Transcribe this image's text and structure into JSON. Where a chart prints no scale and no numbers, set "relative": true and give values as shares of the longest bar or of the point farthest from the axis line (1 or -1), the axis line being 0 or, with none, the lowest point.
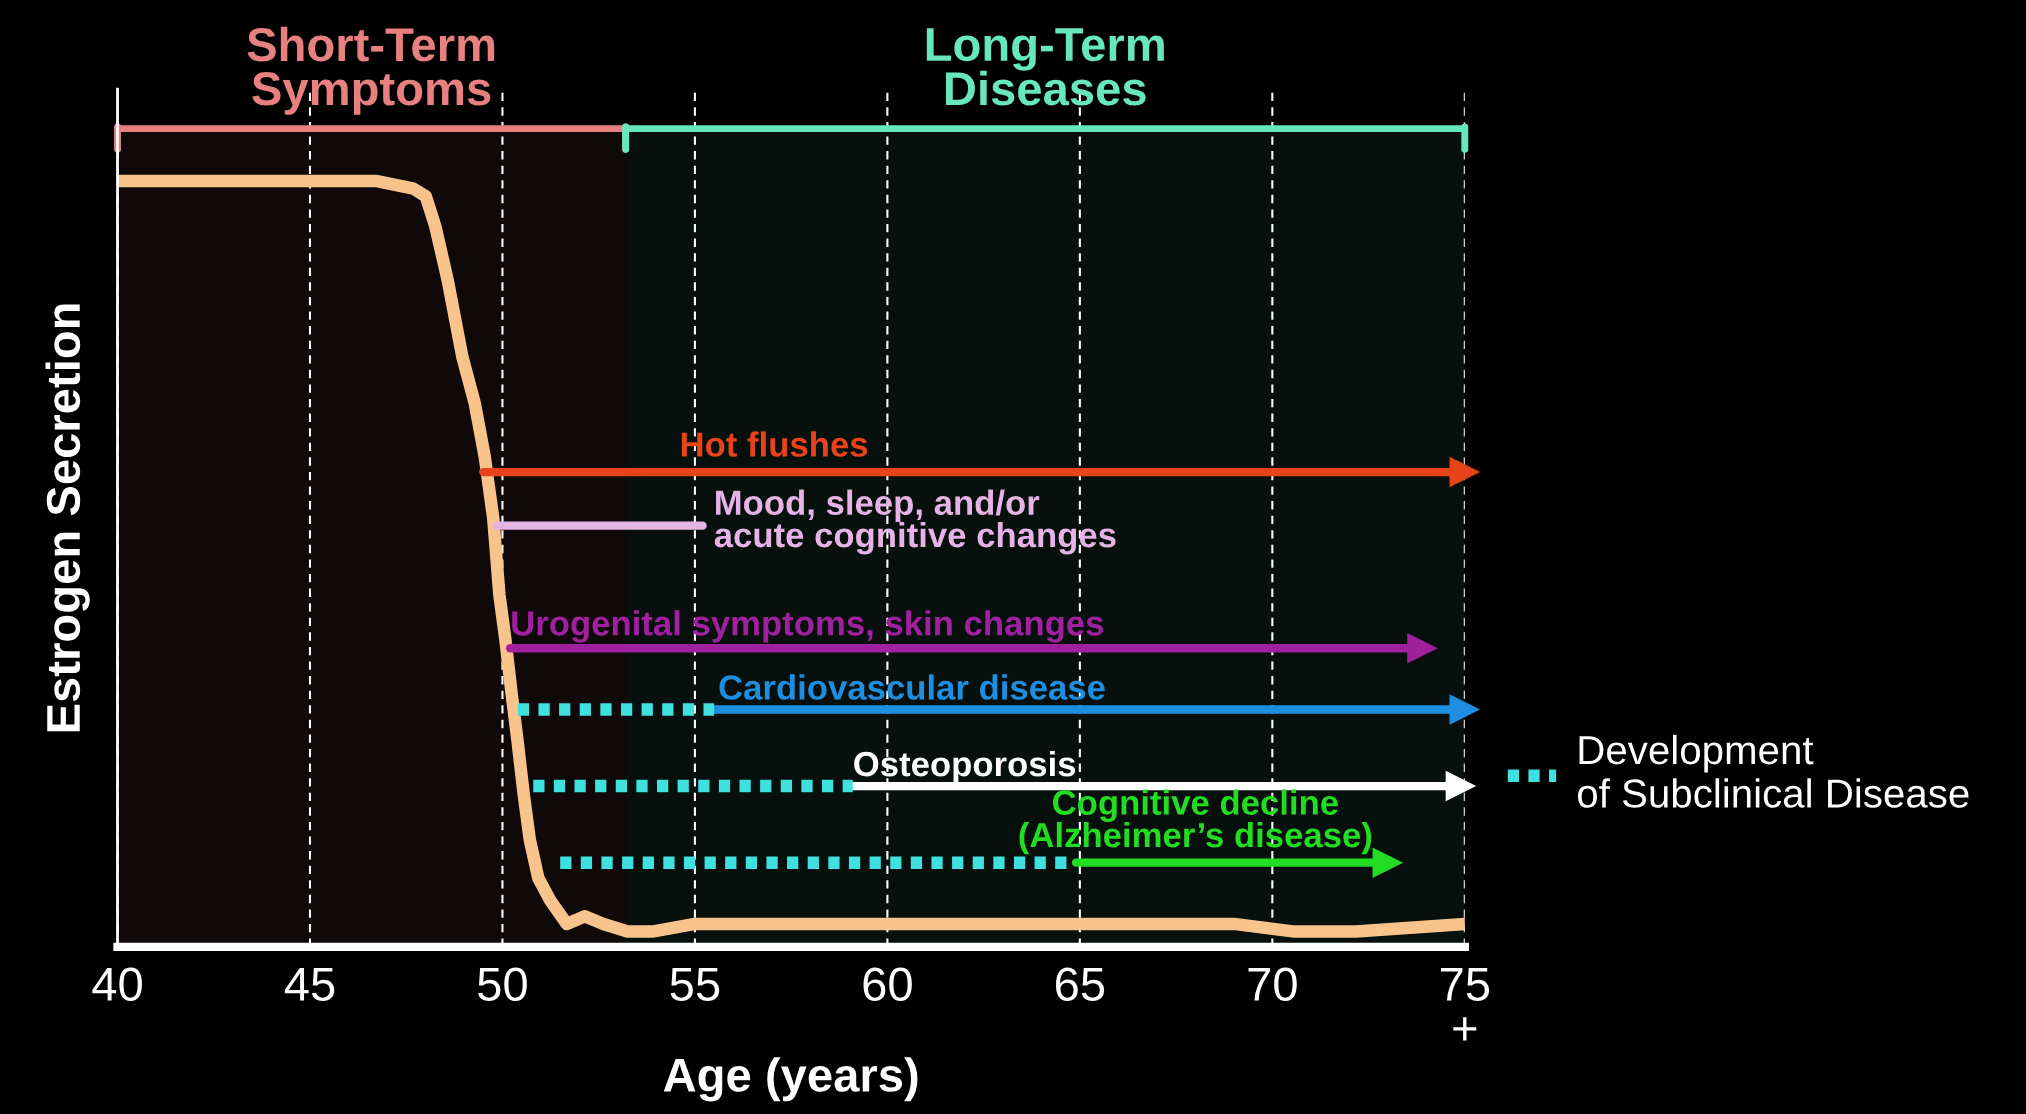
{
  "chart_data": {
    "type": "line",
    "relative": true,
    "xlabel": "Age (years)",
    "ylabel": "Estrogen Secretion",
    "xlim": [
      40,
      75
    ],
    "xticks": [
      40,
      45,
      50,
      55,
      60,
      65,
      70,
      {
        "value": 75,
        "label": "75\n+"
      }
    ],
    "grid": "x",
    "legend": "right",
    "bands": [
      {
        "axis": "x",
        "from": 40,
        "to": 53.2,
        "label": "Short-Term\nSymptoms",
        "color": "#e88080"
      },
      {
        "axis": "x",
        "from": 53.2,
        "to": 75,
        "label": "Long-Term\nDiseases",
        "color": "#66e8bb"
      }
    ],
    "series": [
      {
        "color": "#f9c48c",
        "x": [
          40,
          41.97,
          44.99,
          46.74,
          47.69,
          48.01,
          48.26,
          48.58,
          48.96,
          49.28,
          49.54,
          49.76,
          49.92,
          50.08,
          50.24,
          50.39,
          50.55,
          50.71,
          50.93,
          51.25,
          51.67,
          52.14,
          52.62,
          53.25,
          53.89,
          55.0,
          56.27,
          57.23,
          58.18,
          59.45,
          61.04,
          62.63,
          64.86,
          67.4,
          69.0,
          70.58,
          72.17,
          75
        ],
        "values": [
          1.0,
          1.0,
          1.0,
          1.0,
          0.99,
          0.98,
          0.94,
          0.87,
          0.77,
          0.71,
          0.64,
          0.56,
          0.46,
          0.4,
          0.33,
          0.27,
          0.2,
          0.14,
          0.09,
          0.06,
          0.03,
          0.04,
          0.03,
          0.02,
          0.02,
          0.03,
          0.03,
          0.03,
          0.03,
          0.03,
          0.03,
          0.03,
          0.03,
          0.03,
          0.03,
          0.02,
          0.02,
          0.03
        ]
      },
      {
        "color": "#e8431a",
        "marker": "triangle",
        "x": [
          49.5,
          75
        ],
        "values": [
          0.62,
          0.62
        ]
      },
      {
        "color": "#e6b3e6",
        "marker": "none",
        "x": [
          49.85,
          55.2
        ],
        "values": [
          0.55,
          0.55
        ]
      },
      {
        "color": "#a020a0",
        "marker": "triangle",
        "x": [
          50.2,
          73.9
        ],
        "values": [
          0.39,
          0.39
        ]
      },
      {
        "color": "#1e8fe0",
        "marker": "triangle",
        "x": [
          55.5,
          75
        ],
        "values": [
          0.31,
          0.31
        ]
      },
      {
        "color": "#ffffff",
        "marker": "triangle",
        "x": [
          59.1,
          74.9
        ],
        "values": [
          0.21,
          0.21
        ]
      },
      {
        "color": "#22dd22",
        "marker": "triangle",
        "x": [
          64.9,
          73.0
        ],
        "values": [
          0.11,
          0.11
        ]
      },
      {
        "name": "Development of Subclinical Disease",
        "color": "#3fe0e0",
        "line_style": "dotted",
        "x": [
          50.4,
          55.5
        ],
        "values": [
          0.31,
          0.31
        ]
      },
      {
        "color": "#3fe0e0",
        "line_style": "dotted",
        "x": [
          50.8,
          59.1
        ],
        "values": [
          0.21,
          0.21
        ]
      },
      {
        "color": "#3fe0e0",
        "line_style": "dotted",
        "x": [
          51.5,
          64.7
        ],
        "values": [
          0.11,
          0.11
        ]
      }
    ],
    "annotations": [
      {
        "text": "Hot flushes",
        "x": 54.6,
        "y": 0.62
      },
      {
        "text": "Mood, sleep, and/or\nacute cognitive changes",
        "x": 55.2,
        "y": 0.55
      },
      {
        "text": "Urogenital symptoms, skin changes",
        "x": 50.2,
        "y": 0.39
      },
      {
        "text": "Cardiovascular disease",
        "x": 55.6,
        "y": 0.31
      },
      {
        "text": "Osteoporosis",
        "x": 59.1,
        "y": 0.21
      },
      {
        "text": "Cognitive decline\n(Alzheimer’s disease)",
        "x": 68.0,
        "y": 0.11
      }
    ]
  }
}
